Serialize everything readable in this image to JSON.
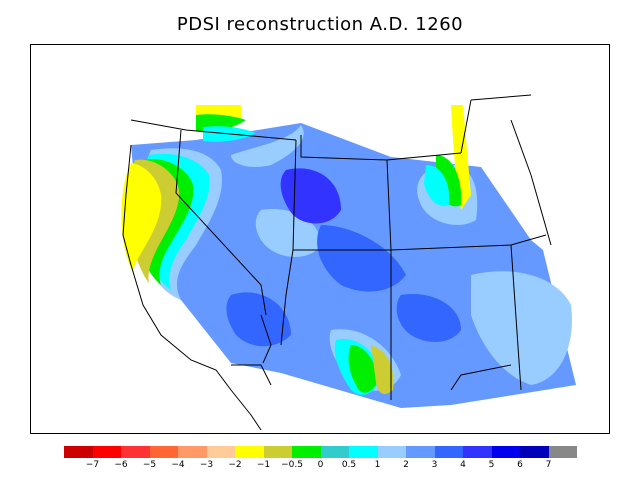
{
  "title": "PDSI reconstruction A.D. 1260",
  "legend": {
    "colors": [
      "#cc0000",
      "#ff0000",
      "#ff3333",
      "#ff6633",
      "#ff9966",
      "#ffcc99",
      "#ffff00",
      "#cccc33",
      "#00ee00",
      "#33cccc",
      "#00ffff",
      "#99ccff",
      "#6699ff",
      "#3366ff",
      "#3333ff",
      "#0000ee",
      "#0000bb",
      "#888888"
    ],
    "labels": [
      "−7",
      "−6",
      "−5",
      "−4",
      "−3",
      "−2",
      "−1",
      "−0.5",
      "0",
      "0.5",
      "1",
      "2",
      "3",
      "4",
      "5",
      "6",
      "7"
    ]
  }
}
